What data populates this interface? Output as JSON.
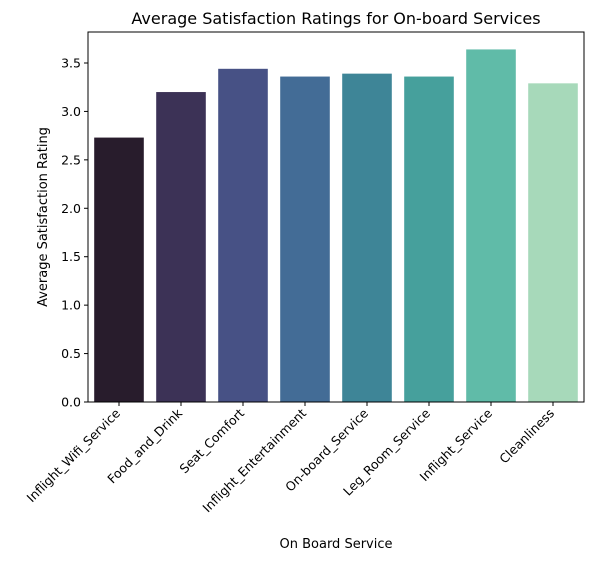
{
  "chart_data": {
    "type": "bar",
    "title": "Average Satisfaction Ratings for On-board Services",
    "xlabel": "On Board Service",
    "ylabel": "Average Satisfaction Rating",
    "categories": [
      "Inflight_Wifi_Service",
      "Food_and_Drink",
      "Seat_Comfort",
      "Inflight_Entertainment",
      "On-board_Service",
      "Leg_Room_Service",
      "Inflight_Service",
      "Cleanliness"
    ],
    "values": [
      2.73,
      3.2,
      3.44,
      3.36,
      3.39,
      3.36,
      3.64,
      3.29
    ],
    "colors": [
      "#281c2c",
      "#3c3256",
      "#475185",
      "#436c96",
      "#3e8597",
      "#46a09c",
      "#60bba8",
      "#a7d9ba"
    ],
    "ylim": [
      0,
      3.82
    ],
    "yticks": [
      "0.0",
      "0.5",
      "1.0",
      "1.5",
      "2.0",
      "2.5",
      "3.0",
      "3.5"
    ],
    "grid": false,
    "legend": "none"
  }
}
